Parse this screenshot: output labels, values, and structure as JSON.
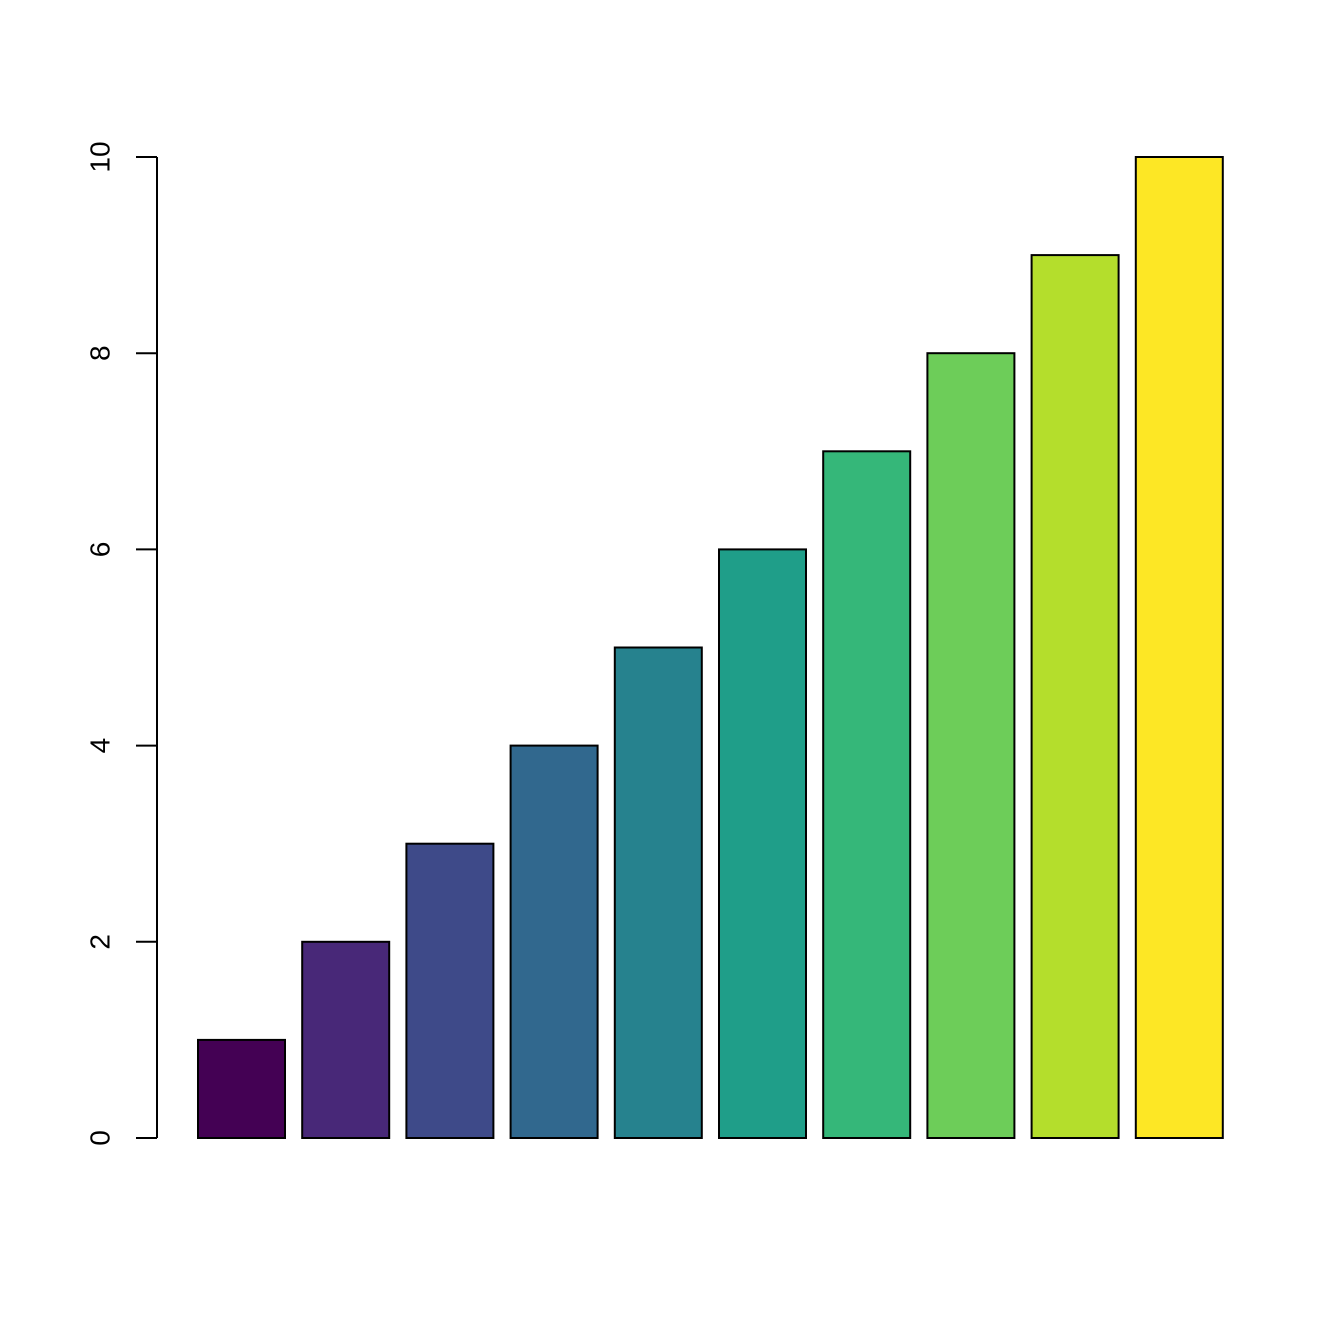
{
  "chart_data": {
    "type": "bar",
    "title": "",
    "xlabel": "",
    "ylabel": "",
    "ylim": [
      0,
      10
    ],
    "y_ticks": [
      "0",
      "2",
      "4",
      "6",
      "8",
      "10"
    ],
    "grid": false,
    "legend": "none",
    "values": [
      1,
      2,
      3,
      4,
      5,
      6,
      7,
      8,
      9,
      10
    ],
    "colors": [
      "#440154",
      "#482878",
      "#3E4A89",
      "#31688E",
      "#26828E",
      "#1F9E89",
      "#35B779",
      "#6DCD59",
      "#B4DE2C",
      "#FDE725"
    ]
  }
}
